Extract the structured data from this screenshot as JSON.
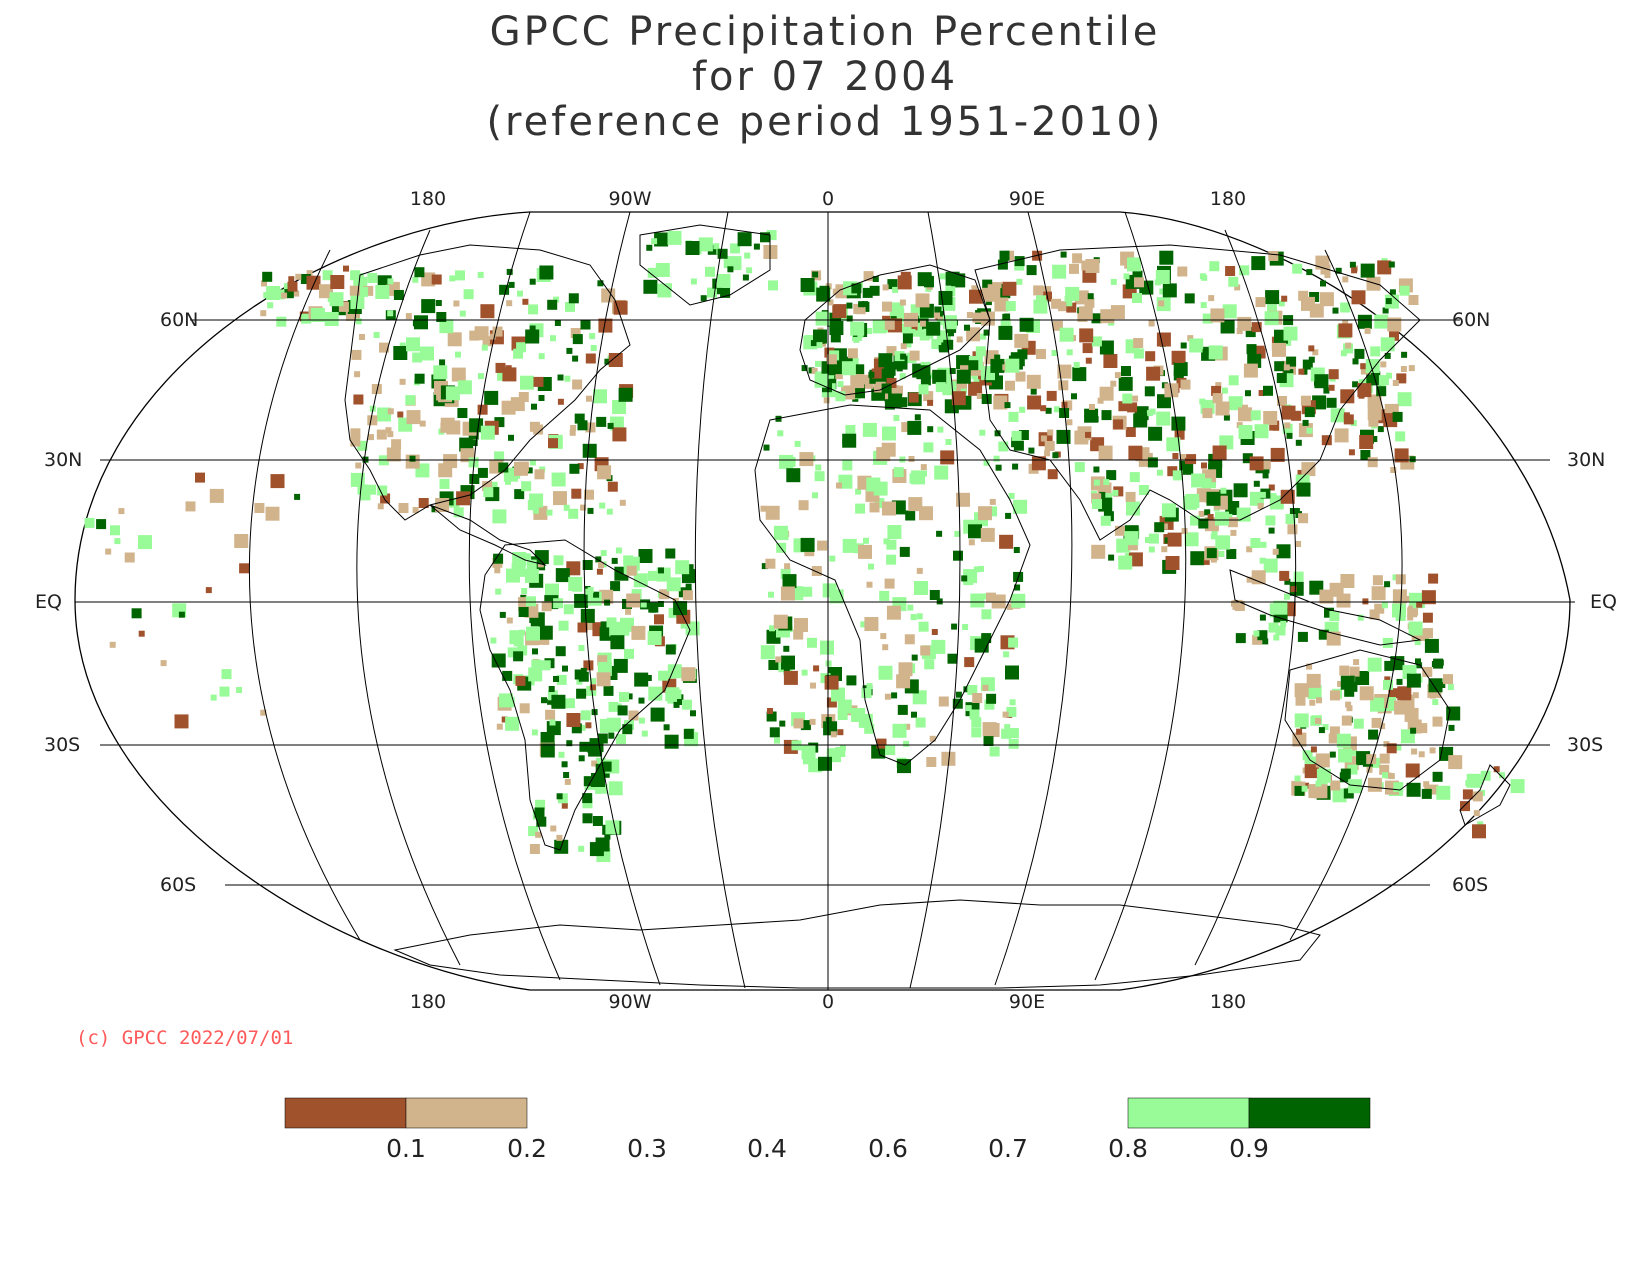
{
  "title": {
    "line1": "GPCC Precipitation Percentile",
    "line2": "for 07 2004",
    "line3": "(reference period 1951-2010)"
  },
  "longitude_labels": [
    "180",
    "90W",
    "0",
    "90E",
    "180"
  ],
  "latitude_labels": {
    "left": [
      "60N",
      "30N",
      "EQ",
      "30S",
      "60S"
    ],
    "right": [
      "60N",
      "30N",
      "EQ",
      "30S",
      "60S"
    ]
  },
  "credit": "(c) GPCC 2022/07/01",
  "legend": {
    "tick_labels": [
      "0.1",
      "0.2",
      "0.3",
      "0.4",
      "0.6",
      "0.7",
      "0.8",
      "0.9"
    ],
    "colors": {
      "below_0_1": "#a0522d",
      "0_1_to_0_2": "#d2b48c",
      "0_8_to_0_9": "#98fb98",
      "above_0_9": "#006400"
    }
  }
}
